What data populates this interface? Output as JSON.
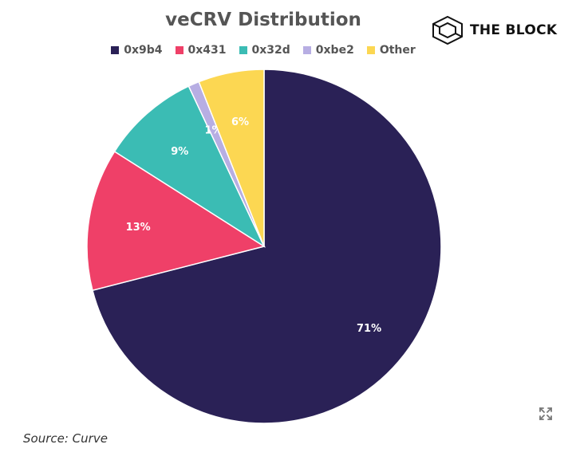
{
  "chart_data": {
    "type": "pie",
    "title": "veCRV Distribution",
    "legend_position": "top",
    "slices": [
      {
        "label": "0x9b4",
        "value": 71,
        "display": "71%",
        "color": "#2a2156"
      },
      {
        "label": "0x431",
        "value": 13,
        "display": "13%",
        "color": "#ef4068"
      },
      {
        "label": "0x32d",
        "value": 9,
        "display": "9%",
        "color": "#3bbcb4"
      },
      {
        "label": "0xbe2",
        "value": 1,
        "display": "1%",
        "color": "#b7aee3"
      },
      {
        "label": "Other",
        "value": 6,
        "display": "6%",
        "color": "#fcd752"
      }
    ]
  },
  "brand": {
    "name": "THE BLOCK",
    "icon": "cube-logo-icon"
  },
  "source": "Source: Curve",
  "expand_icon": "expand-icon"
}
